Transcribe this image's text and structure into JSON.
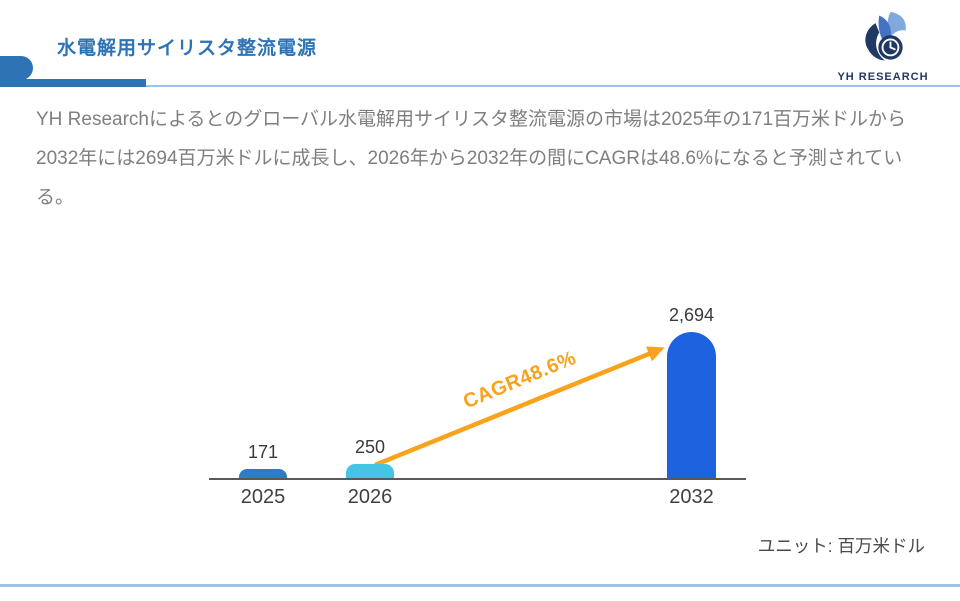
{
  "header": {
    "title": "水電解用サイリスタ整流電源",
    "logo_text": "YH RESEARCH"
  },
  "summary": "YH Researchによるとのグローバル水電解用サイリスタ整流電源の市場は2025年の171百万米ドルから2032年には2694百万米ドルに成長し、2026年から2032年の間にCAGRは48.6%になると予測されている。",
  "chart_data": {
    "type": "bar",
    "categories": [
      "2025",
      "2026",
      "2032"
    ],
    "values": [
      171,
      250,
      2694
    ],
    "value_labels": [
      "171",
      "250",
      "2,694"
    ],
    "bar_colors": [
      "#3179CA",
      "#45C5E3",
      "#1F62E0"
    ],
    "annotation": "CAGR48.6%",
    "unit_label": "ユニット: 百万米ドル",
    "ylim": [
      0,
      2800
    ],
    "grid": false,
    "legend": false
  },
  "colors": {
    "accent_blue": "#2E74B5",
    "light_blue_line": "#9DC3E6",
    "arrow_orange": "#F9A21B",
    "paragraph_gray": "#7F7F7F",
    "axis_gray": "#595959",
    "logo_navy": "#1F3864"
  }
}
